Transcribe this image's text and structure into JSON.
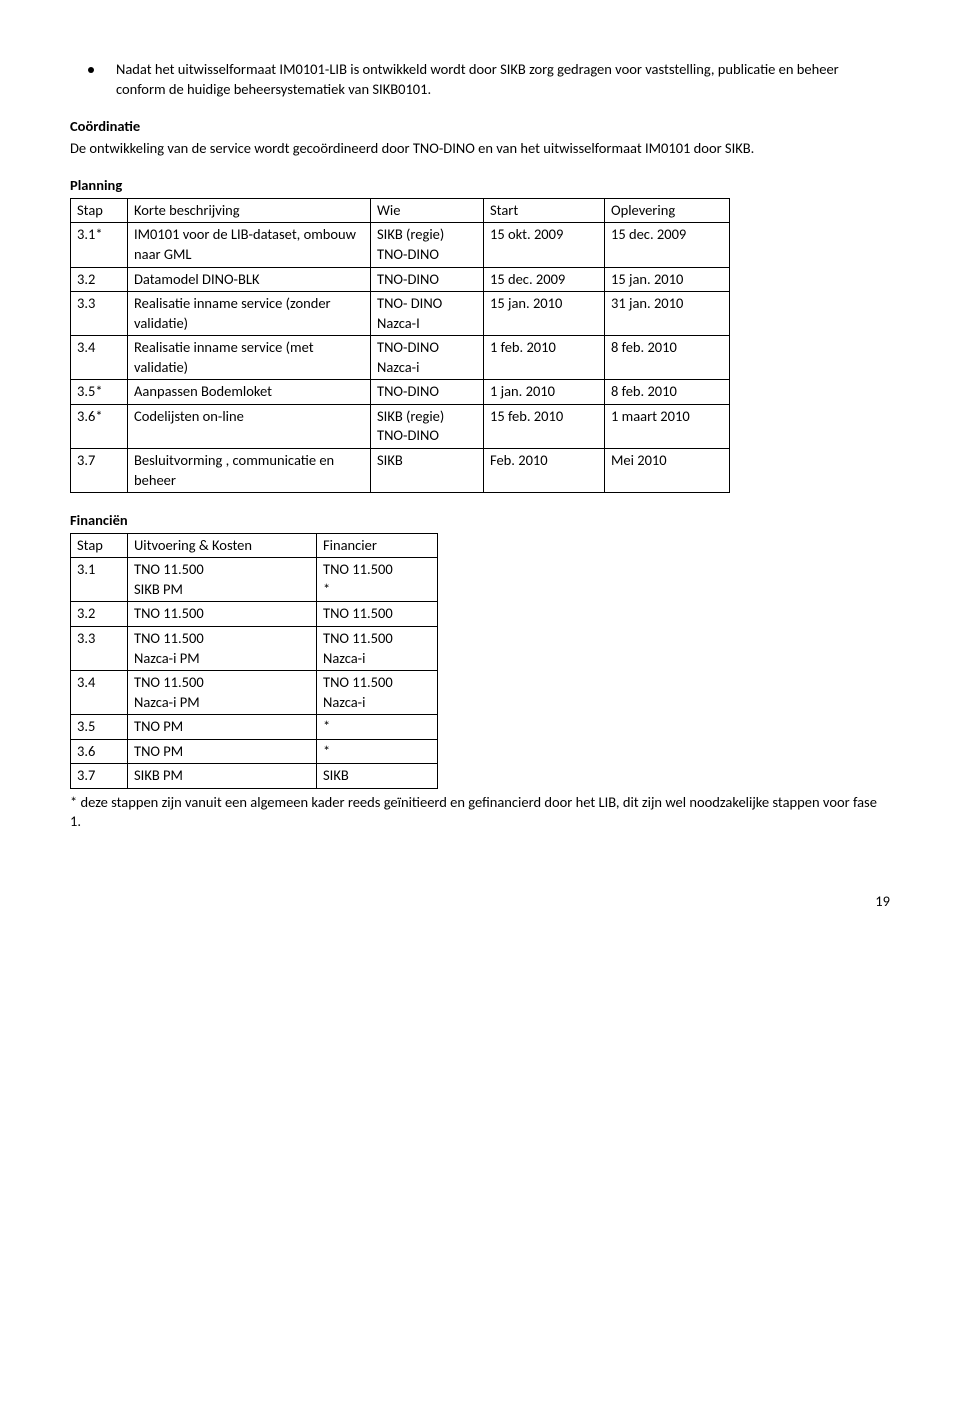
{
  "bullet": {
    "text": "Nadat het uitwisselformaat IM0101-LIB is ontwikkeld wordt door SIKB zorg gedragen voor vaststelling, publicatie en beheer conform de huidige beheersystematiek van SIKB0101."
  },
  "coord": {
    "heading": "Coördinatie",
    "body": "De ontwikkeling van de service wordt gecoördineerd door TNO-DINO en van het uitwisselformaat IM0101 door SIKB."
  },
  "planning": {
    "heading": "Planning",
    "header": [
      "Stap",
      "Korte beschrijving",
      "Wie",
      "Start",
      "Oplevering"
    ],
    "rows": [
      {
        "c0": "3.1*",
        "c1": "IM0101 voor de LIB-dataset, ombouw naar GML",
        "c2": "SIKB (regie)\nTNO-DINO",
        "c3": "15 okt. 2009",
        "c4": "15 dec. 2009"
      },
      {
        "c0": "3.2",
        "c1": "Datamodel DINO-BLK",
        "c2": "TNO-DINO",
        "c3": "15 dec. 2009",
        "c4": "15 jan. 2010"
      },
      {
        "c0": "3.3",
        "c1": "Realisatie inname service (zonder validatie)",
        "c2": "TNO- DINO\nNazca-I",
        "c3": "15 jan. 2010",
        "c4": "31 jan. 2010"
      },
      {
        "c0": "3.4",
        "c1": "Realisatie inname service (met validatie)",
        "c2": "TNO-DINO\nNazca-i",
        "c3": "1 feb. 2010",
        "c4": "8 feb. 2010"
      },
      {
        "c0": "3.5*",
        "c1": "Aanpassen Bodemloket",
        "c2": "TNO-DINO",
        "c3": "1 jan. 2010",
        "c4": "8 feb. 2010"
      },
      {
        "c0": "3.6*",
        "c1": "Codelijsten on-line",
        "c2": "SIKB (regie)\nTNO-DINO",
        "c3": "15 feb. 2010",
        "c4": "1 maart 2010"
      },
      {
        "c0": "3.7",
        "c1": "Besluitvorming , communicatie en beheer",
        "c2": "SIKB",
        "c3": "Feb. 2010",
        "c4": "Mei 2010"
      }
    ]
  },
  "finance": {
    "heading": "Financiën",
    "header": [
      "Stap",
      "Uitvoering & Kosten",
      "Financier"
    ],
    "rows": [
      {
        "c0": "3.1",
        "c1": "TNO  11.500\nSIKB PM",
        "c2": "TNO 11.500\n*"
      },
      {
        "c0": "3.2",
        "c1": "TNO  11.500",
        "c2": "TNO 11.500"
      },
      {
        "c0": "3.3",
        "c1": "TNO  11.500\nNazca-i PM",
        "c2": "TNO 11.500\nNazca-i"
      },
      {
        "c0": "3.4",
        "c1": "TNO  11.500\nNazca-i PM",
        "c2": "TNO 11.500\nNazca-i"
      },
      {
        "c0": "3.5",
        "c1": "TNO PM",
        "c2": "*"
      },
      {
        "c0": "3.6",
        "c1": "TNO PM",
        "c2": "*"
      },
      {
        "c0": "3.7",
        "c1": "SIKB PM",
        "c2": "SIKB"
      }
    ],
    "footnote": "* deze stappen zijn vanuit een algemeen kader reeds geïnitieerd en gefinancierd door het LIB, dit zijn wel noodzakelijke stappen voor  fase 1."
  },
  "page_number": "19"
}
